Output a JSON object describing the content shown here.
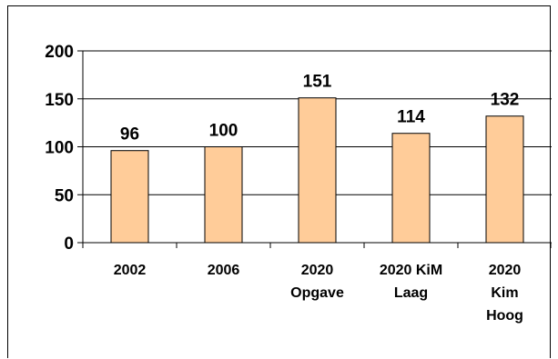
{
  "chart_data": {
    "type": "bar",
    "categories": [
      [
        "2002"
      ],
      [
        "2006"
      ],
      [
        "2020",
        "Opgave"
      ],
      [
        "2020 KiM",
        "Laag"
      ],
      [
        "2020",
        "Kim",
        "Hoog"
      ]
    ],
    "values": [
      96,
      100,
      151,
      114,
      132
    ],
    "data_labels": [
      "96",
      "100",
      "151",
      "114",
      "132"
    ],
    "y_ticks": [
      "0",
      "50",
      "100",
      "150",
      "200"
    ],
    "ylim": [
      0,
      200
    ],
    "grid": true,
    "legend": false,
    "colors": {
      "bar_fill": "#FFCC99",
      "bar_stroke": "#000000",
      "grid": "#000000"
    }
  }
}
